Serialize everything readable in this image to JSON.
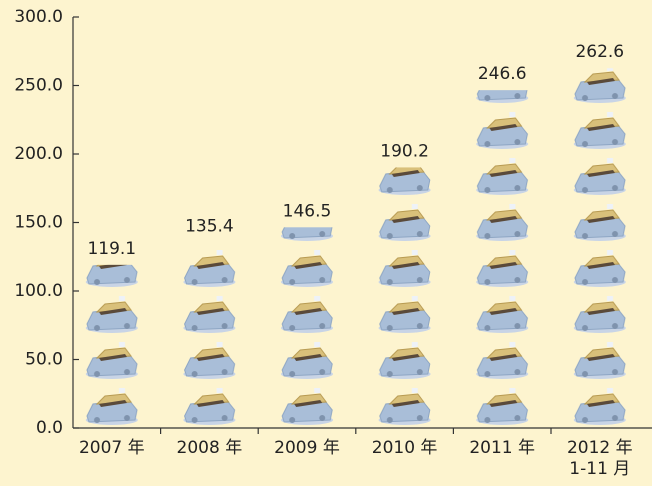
{
  "chart_data": {
    "type": "bar",
    "categories": [
      "2007 年",
      "2008 年",
      "2009 年",
      "2010 年",
      "2011 年",
      "2012 年\n1-11 月"
    ],
    "values": [
      119.1,
      135.4,
      146.5,
      190.2,
      246.6,
      262.6
    ],
    "ylim": [
      0,
      300
    ],
    "yticks": [
      {
        "value": 0,
        "label": "0.0"
      },
      {
        "value": 50,
        "label": "50.0"
      },
      {
        "value": 100,
        "label": "100.0"
      },
      {
        "value": 150,
        "label": "150.0"
      },
      {
        "value": 200,
        "label": "200.0"
      },
      {
        "value": 250,
        "label": "250.0"
      },
      {
        "value": 300,
        "label": "300.0"
      }
    ]
  }
}
